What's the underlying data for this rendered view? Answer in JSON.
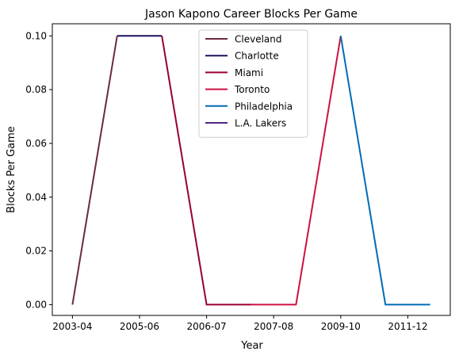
{
  "chart_data": {
    "type": "line",
    "title": "Jason Kapono Career Blocks Per Game",
    "xlabel": "Year",
    "ylabel": "Blocks Per Game",
    "x_tick_labels": [
      "2003-04",
      "2005-06",
      "2006-07",
      "2007-08",
      "2009-10",
      "2011-12"
    ],
    "y_ticks": [
      "0.00",
      "0.02",
      "0.04",
      "0.06",
      "0.08",
      "0.10"
    ],
    "ylim": [
      -0.004,
      0.1045
    ],
    "xlim": [
      -0.45,
      8.45
    ],
    "grid": false,
    "legend_position": "top-center",
    "series": [
      {
        "name": "Cleveland",
        "color": "#6b2a3f",
        "points": [
          [
            0,
            0.0
          ],
          [
            1,
            0.1
          ]
        ]
      },
      {
        "name": "Charlotte",
        "color": "#1d1160",
        "points": [
          [
            1,
            0.1
          ],
          [
            2,
            0.1
          ]
        ]
      },
      {
        "name": "Miami",
        "color": "#98002e",
        "points": [
          [
            2,
            0.1
          ],
          [
            3,
            0.0
          ],
          [
            4,
            0.0
          ]
        ]
      },
      {
        "name": "Toronto",
        "color": "#ce1141",
        "points": [
          [
            4,
            0.0
          ],
          [
            5,
            0.0
          ],
          [
            6,
            0.1
          ]
        ]
      },
      {
        "name": "Philadelphia",
        "color": "#006bb6",
        "points": [
          [
            6,
            0.1
          ],
          [
            7,
            0.0
          ],
          [
            8,
            0.0
          ]
        ]
      },
      {
        "name": "L.A. Lakers",
        "color": "#552583",
        "points": []
      }
    ]
  }
}
